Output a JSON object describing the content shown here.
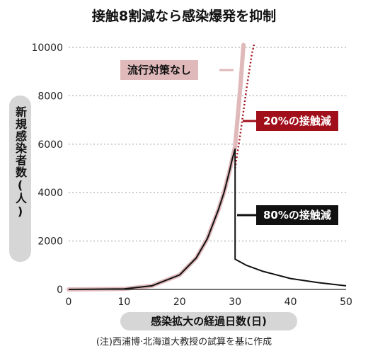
{
  "title": "接触8割減なら感染爆発を抑制",
  "note": "(注)西浦博·北海道大教授の試算を基に作成",
  "colors": {
    "no_measures": "#e0b9bb",
    "reduce20": "#a10f1a",
    "reduce80": "#111111",
    "axis_label_bg": "#d6d6d6"
  },
  "chart_data": {
    "type": "line",
    "title": "接触8割減なら感染爆発を抑制",
    "ylabel": "新規感染者数(人)",
    "xlabel": "感染拡大の経過日数(日)",
    "xlim": [
      0,
      50
    ],
    "ylim": [
      0,
      10000
    ],
    "x_ticks": [
      "0",
      "10",
      "20",
      "30",
      "40",
      "50"
    ],
    "y_ticks": [
      "0",
      "2000",
      "4000",
      "6000",
      "8000",
      "10000"
    ],
    "grid": "horizontal dotted",
    "series": [
      {
        "name": "流行対策なし",
        "color": "#e0b9bb",
        "style": "thick",
        "x": [
          0,
          10,
          15,
          20,
          23,
          25,
          27,
          28,
          29,
          30,
          31,
          31.5
        ],
        "y": [
          0,
          20,
          150,
          600,
          1300,
          2100,
          3300,
          4000,
          4900,
          5900,
          8500,
          10100
        ]
      },
      {
        "name": "20%の接触減",
        "color": "#a10f1a",
        "style": "dotted",
        "x": [
          30,
          31,
          32,
          33,
          33.5
        ],
        "y": [
          5000,
          6500,
          8200,
          9700,
          10200
        ]
      },
      {
        "name": "80%の接触減",
        "color": "#111111",
        "style": "solid",
        "x": [
          0,
          10,
          15,
          20,
          23,
          25,
          27,
          28,
          29,
          29.5,
          30,
          30,
          32,
          35,
          40,
          45,
          50
        ],
        "y": [
          0,
          20,
          150,
          600,
          1300,
          2100,
          3300,
          4000,
          4900,
          5400,
          5800,
          1250,
          1000,
          750,
          450,
          280,
          150
        ]
      }
    ]
  }
}
